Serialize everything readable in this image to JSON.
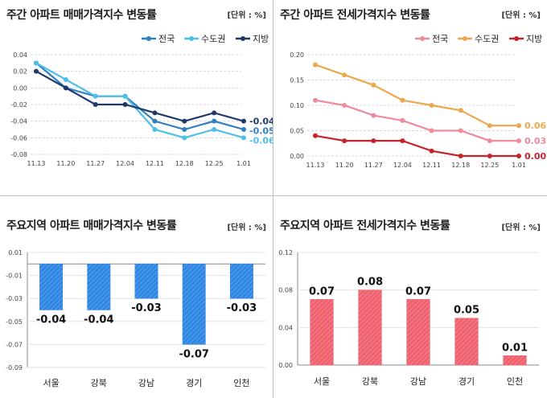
{
  "panels": [
    {
      "title": "주간 아파트 매매가격지수 변동률",
      "unit": "[단위 : %]"
    },
    {
      "title": "주간 아파트 전세가격지수 변동률",
      "unit": "[단위 : %]"
    },
    {
      "title": "주요지역 아파트 매매가격지수 변동률",
      "unit": "[단위 : %]"
    },
    {
      "title": "주요지역 아파트 전세가격지수 변동률",
      "unit": "[단위 : %]"
    }
  ],
  "chart_data": [
    {
      "type": "line",
      "title": "주간 아파트 매매가격지수 변동률",
      "x": [
        "11.13",
        "11.20",
        "11.27",
        "12.04",
        "12.11",
        "12.18",
        "12.25",
        "1.01"
      ],
      "yticks": [
        "0.04",
        "0.02",
        "0.00",
        "-0.02",
        "-0.04",
        "-0.06",
        "-0.08"
      ],
      "ylim": [
        -0.08,
        0.04
      ],
      "series": [
        {
          "name": "전국",
          "color": "#2f7fc1",
          "values": [
            0.03,
            0.0,
            -0.01,
            -0.01,
            -0.04,
            -0.05,
            -0.04,
            -0.05
          ],
          "end_label": "-0.05"
        },
        {
          "name": "수도권",
          "color": "#4dbfe9",
          "values": [
            0.03,
            0.01,
            -0.01,
            -0.01,
            -0.05,
            -0.06,
            -0.05,
            -0.06
          ],
          "end_label": "-0.06"
        },
        {
          "name": "지방",
          "color": "#1f3a68",
          "values": [
            0.02,
            0.0,
            -0.02,
            -0.02,
            -0.03,
            -0.04,
            -0.03,
            -0.04
          ],
          "end_label": "-0.04"
        }
      ]
    },
    {
      "type": "line",
      "title": "주간 아파트 전세가격지수 변동률",
      "x": [
        "11.13",
        "11.20",
        "11.27",
        "12.04",
        "12.11",
        "12.18",
        "12.25",
        "1.01"
      ],
      "yticks": [
        "0.20",
        "0.15",
        "0.10",
        "0.05",
        "0.00"
      ],
      "ylim": [
        0,
        0.2
      ],
      "series": [
        {
          "name": "전국",
          "color": "#ee8a9a",
          "values": [
            0.11,
            0.1,
            0.08,
            0.07,
            0.05,
            0.05,
            0.03,
            0.03
          ],
          "end_label": "0.03"
        },
        {
          "name": "수도권",
          "color": "#eda74e",
          "values": [
            0.18,
            0.16,
            0.14,
            0.11,
            0.1,
            0.09,
            0.06,
            0.06
          ],
          "end_label": "0.06"
        },
        {
          "name": "지방",
          "color": "#c8222a",
          "values": [
            0.04,
            0.03,
            0.03,
            0.03,
            0.01,
            0.0,
            0.0,
            0.0
          ],
          "end_label": "0.00"
        }
      ]
    },
    {
      "type": "bar",
      "title": "주요지역 아파트 매매가격지수 변동률",
      "categories": [
        "서울",
        "강북",
        "강남",
        "경기",
        "인천"
      ],
      "values": [
        -0.04,
        -0.04,
        -0.03,
        -0.07,
        -0.03
      ],
      "labels": [
        "-0.04",
        "-0.04",
        "-0.03",
        "-0.07",
        "-0.03"
      ],
      "yticks": [
        "0.01",
        "-0.01",
        "-0.03",
        "-0.05",
        "-0.07",
        "-0.09"
      ],
      "ylim": [
        -0.09,
        0.01
      ],
      "color": "#2e86e3"
    },
    {
      "type": "bar",
      "title": "주요지역 아파트 전세가격지수 변동률",
      "categories": [
        "서울",
        "강북",
        "강남",
        "경기",
        "인천"
      ],
      "values": [
        0.07,
        0.08,
        0.07,
        0.05,
        0.01
      ],
      "labels": [
        "0.07",
        "0.08",
        "0.07",
        "0.05",
        "0.01"
      ],
      "yticks": [
        "0.12",
        "0.08",
        "0.04",
        "0.00"
      ],
      "ylim": [
        0,
        0.12
      ],
      "color": "#f0616f"
    }
  ]
}
